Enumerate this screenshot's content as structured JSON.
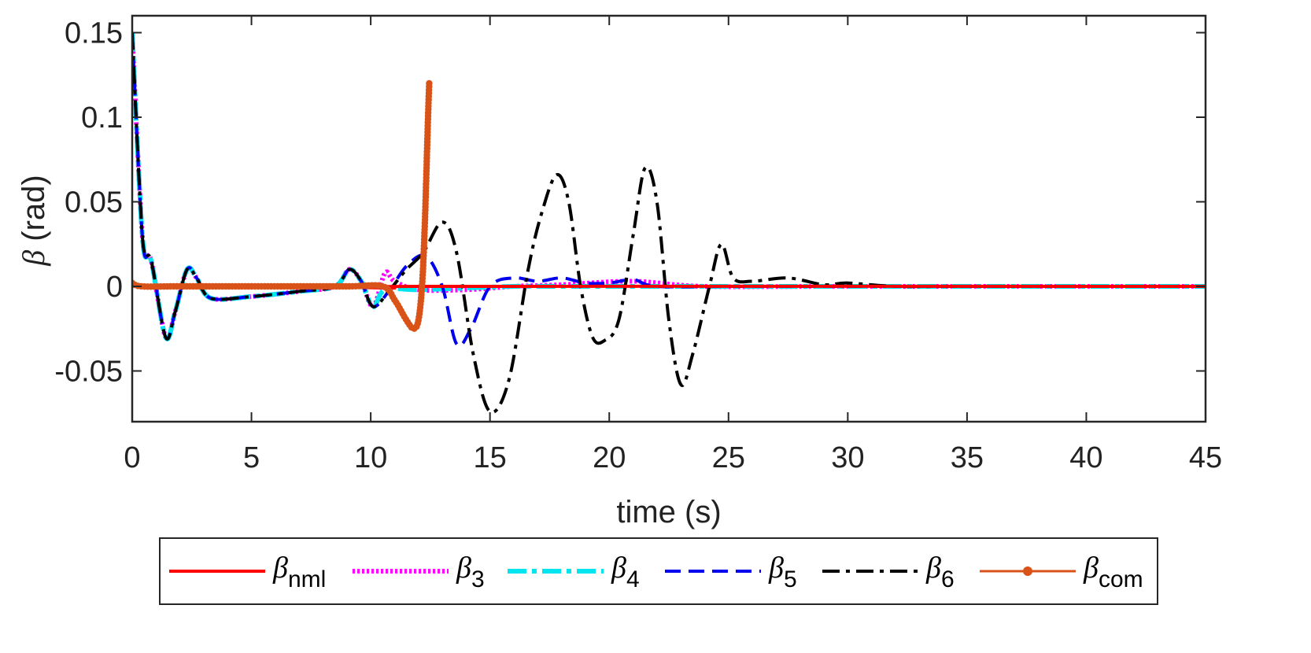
{
  "chart_data": {
    "type": "line",
    "title": "",
    "xlabel": "time (s)",
    "ylabel_symbol": "β",
    "ylabel_unit": " (rad)",
    "xlim": [
      0,
      45
    ],
    "ylim": [
      -0.08,
      0.16
    ],
    "xticks": [
      0,
      5,
      10,
      15,
      20,
      25,
      30,
      35,
      40,
      45
    ],
    "xtick_labels": [
      "0",
      "5",
      "10",
      "15",
      "20",
      "25",
      "30",
      "35",
      "40",
      "45"
    ],
    "yticks": [
      -0.05,
      0,
      0.05,
      0.1,
      0.15
    ],
    "ytick_labels": [
      "-0.05",
      "0",
      "0.05",
      "0.1",
      "0.15"
    ],
    "grid": false,
    "legend_position": "bottom-outside",
    "series": [
      {
        "name": "β_nml",
        "symbol": "β",
        "subscript": "nml",
        "color": "#ff0000",
        "style": "solid",
        "points": [
          [
            0,
            0.002
          ],
          [
            0.5,
            0.0
          ],
          [
            1,
            0.0
          ],
          [
            3,
            0.0
          ],
          [
            6,
            0.0
          ],
          [
            9,
            0.0
          ],
          [
            10.5,
            0.0
          ],
          [
            11,
            -0.001
          ],
          [
            12,
            0.0
          ],
          [
            45,
            0.0
          ]
        ]
      },
      {
        "name": "β_3",
        "symbol": "β",
        "subscript": "3",
        "color": "#ff00ff",
        "style": "dotted",
        "points": [
          [
            0,
            0.15
          ],
          [
            0.3,
            0.06
          ],
          [
            0.5,
            0.02
          ],
          [
            0.8,
            0.015
          ],
          [
            1.4,
            -0.03
          ],
          [
            1.8,
            -0.015
          ],
          [
            2.3,
            0.01
          ],
          [
            2.7,
            0.005
          ],
          [
            3.3,
            -0.007
          ],
          [
            5,
            -0.006
          ],
          [
            7,
            -0.003
          ],
          [
            8.5,
            0.0
          ],
          [
            9.1,
            0.01
          ],
          [
            9.6,
            0.003
          ],
          [
            10.1,
            -0.012
          ],
          [
            10.6,
            0.008
          ],
          [
            11,
            0.003
          ],
          [
            12,
            -0.002
          ],
          [
            14,
            -0.002
          ],
          [
            16,
            0.0
          ],
          [
            18,
            0.001
          ],
          [
            21,
            0.003
          ],
          [
            24,
            0.0
          ],
          [
            30,
            0.0
          ],
          [
            45,
            0.0
          ]
        ]
      },
      {
        "name": "β_4",
        "symbol": "β",
        "subscript": "4",
        "color": "#00e5ee",
        "style": "dashdot-thick",
        "points": [
          [
            0,
            0.15
          ],
          [
            0.3,
            0.06
          ],
          [
            0.5,
            0.02
          ],
          [
            0.8,
            0.015
          ],
          [
            1.4,
            -0.03
          ],
          [
            1.8,
            -0.015
          ],
          [
            2.3,
            0.01
          ],
          [
            2.7,
            0.005
          ],
          [
            3.3,
            -0.007
          ],
          [
            5,
            -0.006
          ],
          [
            7,
            -0.003
          ],
          [
            8.5,
            0.0
          ],
          [
            9.1,
            0.01
          ],
          [
            9.6,
            0.003
          ],
          [
            10.1,
            -0.012
          ],
          [
            10.6,
            -0.002
          ],
          [
            12,
            -0.002
          ],
          [
            14,
            -0.001
          ],
          [
            16,
            0.0
          ],
          [
            18,
            0.0
          ],
          [
            22,
            0.0
          ],
          [
            30,
            0.0
          ],
          [
            45,
            0.0
          ]
        ]
      },
      {
        "name": "β_5",
        "symbol": "β",
        "subscript": "5",
        "color": "#0000ee",
        "style": "dashed",
        "points": [
          [
            0,
            0.15
          ],
          [
            0.3,
            0.06
          ],
          [
            0.5,
            0.02
          ],
          [
            0.8,
            0.015
          ],
          [
            1.4,
            -0.03
          ],
          [
            1.8,
            -0.015
          ],
          [
            2.3,
            0.01
          ],
          [
            2.7,
            0.005
          ],
          [
            3.3,
            -0.007
          ],
          [
            5,
            -0.006
          ],
          [
            7,
            -0.003
          ],
          [
            8.5,
            0.0
          ],
          [
            9.1,
            0.01
          ],
          [
            9.6,
            0.003
          ],
          [
            10.1,
            -0.012
          ],
          [
            10.8,
            -0.002
          ],
          [
            11.5,
            0.012
          ],
          [
            12.3,
            0.018
          ],
          [
            13,
            0.0
          ],
          [
            13.6,
            -0.034
          ],
          [
            14.2,
            -0.025
          ],
          [
            15,
            0.0
          ],
          [
            16,
            0.005
          ],
          [
            17,
            0.003
          ],
          [
            18,
            0.005
          ],
          [
            19,
            0.002
          ],
          [
            20,
            0.002
          ],
          [
            21,
            0.004
          ],
          [
            22,
            0.0
          ],
          [
            25,
            0.0
          ],
          [
            30,
            0.0
          ],
          [
            45,
            0.0
          ]
        ]
      },
      {
        "name": "β_6",
        "symbol": "β",
        "subscript": "6",
        "color": "#000000",
        "style": "dashdot",
        "points": [
          [
            0,
            0.15
          ],
          [
            0.3,
            0.06
          ],
          [
            0.5,
            0.02
          ],
          [
            0.8,
            0.015
          ],
          [
            1.4,
            -0.03
          ],
          [
            1.8,
            -0.015
          ],
          [
            2.3,
            0.01
          ],
          [
            2.7,
            0.005
          ],
          [
            3.3,
            -0.007
          ],
          [
            5,
            -0.006
          ],
          [
            7,
            -0.003
          ],
          [
            8.5,
            0.0
          ],
          [
            9.1,
            0.01
          ],
          [
            9.6,
            0.003
          ],
          [
            10.1,
            -0.012
          ],
          [
            10.8,
            -0.002
          ],
          [
            11.5,
            0.01
          ],
          [
            12.2,
            0.02
          ],
          [
            13,
            0.038
          ],
          [
            13.6,
            0.02
          ],
          [
            14.3,
            -0.04
          ],
          [
            15,
            -0.074
          ],
          [
            15.8,
            -0.055
          ],
          [
            16.6,
            0.01
          ],
          [
            17.2,
            0.045
          ],
          [
            17.8,
            0.066
          ],
          [
            18.3,
            0.05
          ],
          [
            18.8,
            0.0
          ],
          [
            19.3,
            -0.03
          ],
          [
            19.8,
            -0.032
          ],
          [
            20.4,
            -0.02
          ],
          [
            21,
            0.03
          ],
          [
            21.5,
            0.07
          ],
          [
            22,
            0.05
          ],
          [
            22.5,
            -0.02
          ],
          [
            23,
            -0.058
          ],
          [
            23.5,
            -0.04
          ],
          [
            24.2,
            0.0
          ],
          [
            24.7,
            0.025
          ],
          [
            25.2,
            0.005
          ],
          [
            26,
            0.003
          ],
          [
            27.5,
            0.005
          ],
          [
            29,
            0.001
          ],
          [
            30,
            0.002
          ],
          [
            32,
            0.0
          ],
          [
            35,
            0.0
          ],
          [
            45,
            0.0
          ]
        ]
      },
      {
        "name": "β_com",
        "symbol": "β",
        "subscript": "com",
        "color": "#d95319",
        "style": "solid-markers",
        "points": [
          [
            0,
            0.002
          ],
          [
            0.4,
            0.0
          ],
          [
            2,
            0.0
          ],
          [
            6,
            0.0
          ],
          [
            9,
            0.0
          ],
          [
            10.5,
            0.0
          ],
          [
            11,
            -0.008
          ],
          [
            11.5,
            -0.02
          ],
          [
            11.8,
            -0.025
          ],
          [
            12,
            -0.02
          ],
          [
            12.15,
            0.0
          ],
          [
            12.25,
            0.03
          ],
          [
            12.32,
            0.06
          ],
          [
            12.38,
            0.09
          ],
          [
            12.45,
            0.12
          ]
        ]
      }
    ]
  }
}
